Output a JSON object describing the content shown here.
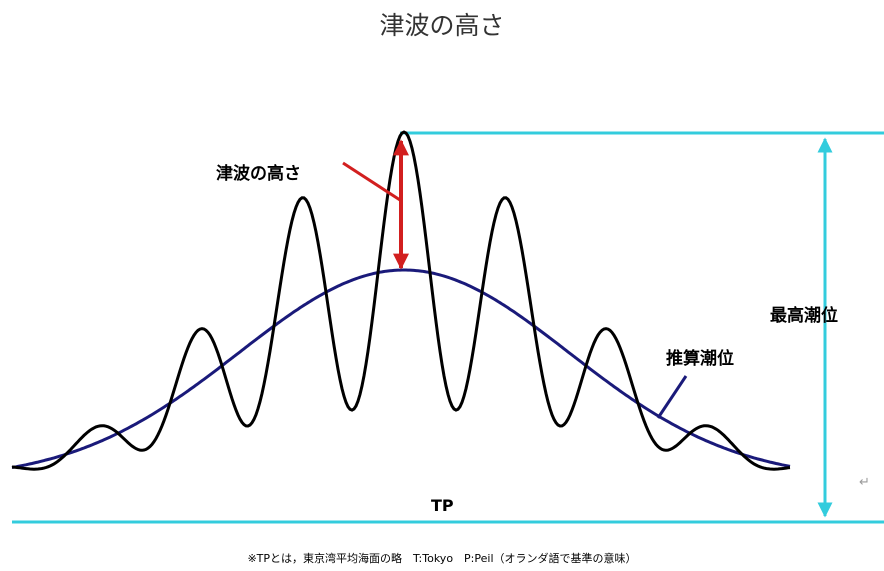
{
  "title": "津波の高さ",
  "labels": {
    "tsunami_height": "津波の高さ",
    "max_tide_level": "最高潮位",
    "estimated_tide_level": "推算潮位",
    "tp": "TP"
  },
  "return_mark": "↵",
  "footnote": "※TPとは，東京湾平均海面の略　T:Tokyo　P:Peil（オランダ語で基準の意味）",
  "colors": {
    "tsunami_wave": "#000000",
    "estimated_tide": "#1a1a7a",
    "reference_lines": "#33ccdd",
    "tsunami_height_arrow": "#d21f1f"
  }
}
